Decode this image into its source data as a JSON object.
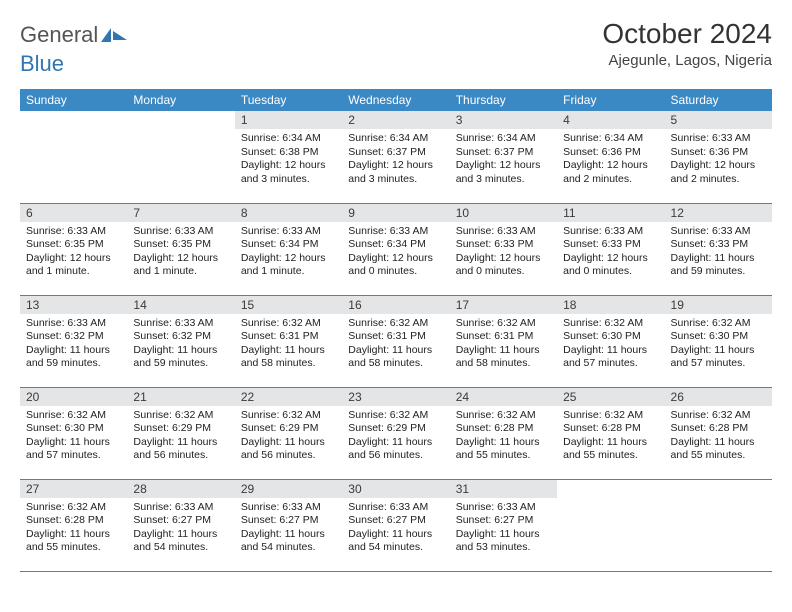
{
  "brand": {
    "part1": "General",
    "part2": "Blue"
  },
  "title": {
    "month": "October 2024",
    "location": "Ajegunle, Lagos, Nigeria"
  },
  "colors": {
    "header_bg": "#3a88c4",
    "header_fg": "#ffffff",
    "daynum_bg": "#e4e5e6",
    "rule": "#3a88c4",
    "brand_blue": "#3276b1",
    "text": "#333333"
  },
  "typography": {
    "month_fontsize": 28,
    "location_fontsize": 15,
    "day_header_fontsize": 12,
    "body_fontsize": 10.5
  },
  "calendar": {
    "type": "table",
    "columns": [
      "Sunday",
      "Monday",
      "Tuesday",
      "Wednesday",
      "Thursday",
      "Friday",
      "Saturday"
    ],
    "weeks": [
      [
        null,
        null,
        {
          "n": "1",
          "sunrise": "6:34 AM",
          "sunset": "6:38 PM",
          "daylight": "12 hours and 3 minutes."
        },
        {
          "n": "2",
          "sunrise": "6:34 AM",
          "sunset": "6:37 PM",
          "daylight": "12 hours and 3 minutes."
        },
        {
          "n": "3",
          "sunrise": "6:34 AM",
          "sunset": "6:37 PM",
          "daylight": "12 hours and 3 minutes."
        },
        {
          "n": "4",
          "sunrise": "6:34 AM",
          "sunset": "6:36 PM",
          "daylight": "12 hours and 2 minutes."
        },
        {
          "n": "5",
          "sunrise": "6:33 AM",
          "sunset": "6:36 PM",
          "daylight": "12 hours and 2 minutes."
        }
      ],
      [
        {
          "n": "6",
          "sunrise": "6:33 AM",
          "sunset": "6:35 PM",
          "daylight": "12 hours and 1 minute."
        },
        {
          "n": "7",
          "sunrise": "6:33 AM",
          "sunset": "6:35 PM",
          "daylight": "12 hours and 1 minute."
        },
        {
          "n": "8",
          "sunrise": "6:33 AM",
          "sunset": "6:34 PM",
          "daylight": "12 hours and 1 minute."
        },
        {
          "n": "9",
          "sunrise": "6:33 AM",
          "sunset": "6:34 PM",
          "daylight": "12 hours and 0 minutes."
        },
        {
          "n": "10",
          "sunrise": "6:33 AM",
          "sunset": "6:33 PM",
          "daylight": "12 hours and 0 minutes."
        },
        {
          "n": "11",
          "sunrise": "6:33 AM",
          "sunset": "6:33 PM",
          "daylight": "12 hours and 0 minutes."
        },
        {
          "n": "12",
          "sunrise": "6:33 AM",
          "sunset": "6:33 PM",
          "daylight": "11 hours and 59 minutes."
        }
      ],
      [
        {
          "n": "13",
          "sunrise": "6:33 AM",
          "sunset": "6:32 PM",
          "daylight": "11 hours and 59 minutes."
        },
        {
          "n": "14",
          "sunrise": "6:33 AM",
          "sunset": "6:32 PM",
          "daylight": "11 hours and 59 minutes."
        },
        {
          "n": "15",
          "sunrise": "6:32 AM",
          "sunset": "6:31 PM",
          "daylight": "11 hours and 58 minutes."
        },
        {
          "n": "16",
          "sunrise": "6:32 AM",
          "sunset": "6:31 PM",
          "daylight": "11 hours and 58 minutes."
        },
        {
          "n": "17",
          "sunrise": "6:32 AM",
          "sunset": "6:31 PM",
          "daylight": "11 hours and 58 minutes."
        },
        {
          "n": "18",
          "sunrise": "6:32 AM",
          "sunset": "6:30 PM",
          "daylight": "11 hours and 57 minutes."
        },
        {
          "n": "19",
          "sunrise": "6:32 AM",
          "sunset": "6:30 PM",
          "daylight": "11 hours and 57 minutes."
        }
      ],
      [
        {
          "n": "20",
          "sunrise": "6:32 AM",
          "sunset": "6:30 PM",
          "daylight": "11 hours and 57 minutes."
        },
        {
          "n": "21",
          "sunrise": "6:32 AM",
          "sunset": "6:29 PM",
          "daylight": "11 hours and 56 minutes."
        },
        {
          "n": "22",
          "sunrise": "6:32 AM",
          "sunset": "6:29 PM",
          "daylight": "11 hours and 56 minutes."
        },
        {
          "n": "23",
          "sunrise": "6:32 AM",
          "sunset": "6:29 PM",
          "daylight": "11 hours and 56 minutes."
        },
        {
          "n": "24",
          "sunrise": "6:32 AM",
          "sunset": "6:28 PM",
          "daylight": "11 hours and 55 minutes."
        },
        {
          "n": "25",
          "sunrise": "6:32 AM",
          "sunset": "6:28 PM",
          "daylight": "11 hours and 55 minutes."
        },
        {
          "n": "26",
          "sunrise": "6:32 AM",
          "sunset": "6:28 PM",
          "daylight": "11 hours and 55 minutes."
        }
      ],
      [
        {
          "n": "27",
          "sunrise": "6:32 AM",
          "sunset": "6:28 PM",
          "daylight": "11 hours and 55 minutes."
        },
        {
          "n": "28",
          "sunrise": "6:33 AM",
          "sunset": "6:27 PM",
          "daylight": "11 hours and 54 minutes."
        },
        {
          "n": "29",
          "sunrise": "6:33 AM",
          "sunset": "6:27 PM",
          "daylight": "11 hours and 54 minutes."
        },
        {
          "n": "30",
          "sunrise": "6:33 AM",
          "sunset": "6:27 PM",
          "daylight": "11 hours and 54 minutes."
        },
        {
          "n": "31",
          "sunrise": "6:33 AM",
          "sunset": "6:27 PM",
          "daylight": "11 hours and 53 minutes."
        },
        null,
        null
      ]
    ],
    "labels": {
      "sunrise": "Sunrise:",
      "sunset": "Sunset:",
      "daylight": "Daylight:"
    }
  }
}
